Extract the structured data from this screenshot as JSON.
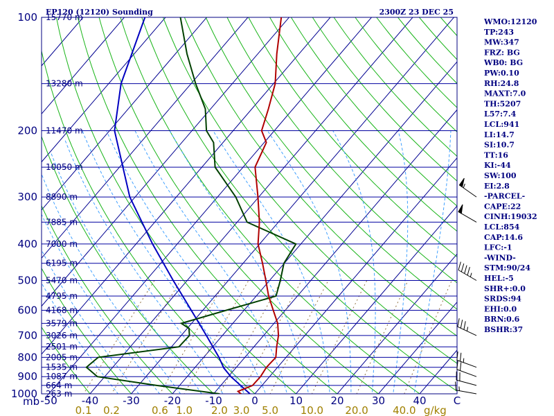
{
  "chart_data": {
    "type": "skew-t",
    "title": "EP120 (12120) Sounding",
    "valid_time": "2300Z 23 DEC 25",
    "pressure_levels": [
      100,
      200,
      300,
      400,
      500,
      600,
      700,
      800,
      900,
      1000
    ],
    "temperature_ticks": [
      "-50",
      "-40",
      "-30",
      "-20",
      "-10",
      "0",
      "10",
      "20",
      "30",
      "40",
      "C"
    ],
    "pressure_unit_label": "mb",
    "mixing_ratio_ticks": [
      {
        "label": "0.1",
        "value": 0.1
      },
      {
        "label": "0.2",
        "value": 0.2
      },
      {
        "label": "0.6",
        "value": 0.6
      },
      {
        "label": "1.0",
        "value": 1.0
      },
      {
        "label": "2.0",
        "value": 2.0
      },
      {
        "label": "3.0",
        "value": 3.0
      },
      {
        "label": "5.0",
        "value": 5.0
      },
      {
        "label": "10.0",
        "value": 10.0
      },
      {
        "label": "20.0",
        "value": 20.0
      },
      {
        "label": "40.0",
        "value": 40.0
      }
    ],
    "mixing_ratio_unit": "g/kg",
    "height_labels": [
      {
        "p": 100,
        "label": "15770 m"
      },
      {
        "p": 150,
        "label": "13280 m"
      },
      {
        "p": 200,
        "label": "11470 m"
      },
      {
        "p": 250,
        "label": "10050 m"
      },
      {
        "p": 300,
        "label": "8890 m"
      },
      {
        "p": 350,
        "label": "7885 m"
      },
      {
        "p": 400,
        "label": "7000 m"
      },
      {
        "p": 450,
        "label": "6195 m"
      },
      {
        "p": 500,
        "label": "5470 m"
      },
      {
        "p": 550,
        "label": "4795 m"
      },
      {
        "p": 600,
        "label": "4168 m"
      },
      {
        "p": 650,
        "label": "3579 m"
      },
      {
        "p": 700,
        "label": "3026 m"
      },
      {
        "p": 750,
        "label": "2501 m"
      },
      {
        "p": 800,
        "label": "2005 m"
      },
      {
        "p": 850,
        "label": "1535 m"
      },
      {
        "p": 900,
        "label": "1087 m"
      },
      {
        "p": 950,
        "label": "664 m"
      },
      {
        "p": 1000,
        "label": "263 m"
      }
    ],
    "temperature_profile": [
      {
        "p": 1000,
        "t": -3.4
      },
      {
        "p": 985,
        "t": -4.6
      },
      {
        "p": 950,
        "t": -2.3
      },
      {
        "p": 900,
        "t": -2.2
      },
      {
        "p": 850,
        "t": -2.7
      },
      {
        "p": 800,
        "t": -2.5
      },
      {
        "p": 750,
        "t": -4.5
      },
      {
        "p": 700,
        "t": -6.4
      },
      {
        "p": 650,
        "t": -9.1
      },
      {
        "p": 600,
        "t": -12.9
      },
      {
        "p": 550,
        "t": -17.0
      },
      {
        "p": 500,
        "t": -20.9
      },
      {
        "p": 450,
        "t": -25.3
      },
      {
        "p": 400,
        "t": -30.4
      },
      {
        "p": 350,
        "t": -34.6
      },
      {
        "p": 300,
        "t": -40.2
      },
      {
        "p": 250,
        "t": -47.1
      },
      {
        "p": 215,
        "t": -49.5
      },
      {
        "p": 200,
        "t": -53.1
      },
      {
        "p": 175,
        "t": -56.0
      },
      {
        "p": 150,
        "t": -59.6
      },
      {
        "p": 125,
        "t": -65.4
      },
      {
        "p": 100,
        "t": -71.9
      }
    ],
    "dewpoint_profile": [
      {
        "p": 1000,
        "t": -8.6
      },
      {
        "p": 950,
        "t": -25.6
      },
      {
        "p": 900,
        "t": -41.8
      },
      {
        "p": 850,
        "t": -46.4
      },
      {
        "p": 800,
        "t": -45.6
      },
      {
        "p": 750,
        "t": -28.2
      },
      {
        "p": 700,
        "t": -28.0
      },
      {
        "p": 670,
        "t": -29.6
      },
      {
        "p": 650,
        "t": -32.5
      },
      {
        "p": 600,
        "t": -24.3
      },
      {
        "p": 550,
        "t": -15.2
      },
      {
        "p": 500,
        "t": -17.4
      },
      {
        "p": 450,
        "t": -20.1
      },
      {
        "p": 400,
        "t": -21.2
      },
      {
        "p": 350,
        "t": -37.6
      },
      {
        "p": 300,
        "t": -45.6
      },
      {
        "p": 250,
        "t": -56.8
      },
      {
        "p": 215,
        "t": -62.3
      },
      {
        "p": 200,
        "t": -66.5
      },
      {
        "p": 175,
        "t": -71.3
      },
      {
        "p": 150,
        "t": -78.9
      },
      {
        "p": 125,
        "t": -87.2
      },
      {
        "p": 100,
        "t": -96.4
      }
    ],
    "parcel_profile": [
      {
        "p": 1000,
        "t": -1.2
      },
      {
        "p": 950,
        "t": -5.2
      },
      {
        "p": 900,
        "t": -9.4
      },
      {
        "p": 854,
        "t": -12.9
      },
      {
        "p": 800,
        "t": -16.3
      },
      {
        "p": 700,
        "t": -23.9
      },
      {
        "p": 600,
        "t": -32.8
      },
      {
        "p": 500,
        "t": -43.4
      },
      {
        "p": 400,
        "t": -56.0
      },
      {
        "p": 300,
        "t": -71.3
      },
      {
        "p": 200,
        "t": -88.8
      },
      {
        "p": 150,
        "t": -97.0
      },
      {
        "p": 100,
        "t": -105.0
      }
    ],
    "wind_barbs": [
      {
        "p": 1000,
        "dir": 280,
        "kt": 15
      },
      {
        "p": 950,
        "dir": 285,
        "kt": 20
      },
      {
        "p": 900,
        "dir": 290,
        "kt": 20
      },
      {
        "p": 850,
        "dir": 290,
        "kt": 25
      },
      {
        "p": 700,
        "dir": 295,
        "kt": 35
      },
      {
        "p": 500,
        "dir": 300,
        "kt": 45
      },
      {
        "p": 350,
        "dir": 300,
        "kt": 50
      },
      {
        "p": 300,
        "dir": 305,
        "kt": 55
      }
    ],
    "indices": [
      "WMO:12120",
      "TP:243",
      "MW:347",
      "FRZ: BG",
      "WB0: BG",
      "PW:0.10",
      "RH:24.8",
      "MAXT:7.0",
      "TH:5207",
      "L57:7.4",
      "LCL:941",
      "LI:14.7",
      "SI:10.7",
      "TT:16",
      "KI:-44",
      "SW:100",
      "EI:2.8",
      "-PARCEL-",
      "CAPE:22",
      "CINH:19032",
      "LCL:854",
      "CAP:14.6",
      "LFC:-1",
      "-WIND-",
      "STM:90/24",
      "HEL:-5",
      "SHR+:0.0",
      "SRDS:94",
      "EHI:0.0",
      "BRN:0.6",
      "BSHR:37"
    ],
    "colors": {
      "isobar": "#0000a0",
      "isotherm": "#000090",
      "dry_adiabat": "#18b418",
      "moist_adiabat": "#40a0ff",
      "mixing_ratio": "#907040",
      "temperature": "#b00000",
      "dewpoint": "#004000",
      "parcel": "#0000c0",
      "text": "#000080",
      "mixing_label": "#a08000"
    }
  }
}
